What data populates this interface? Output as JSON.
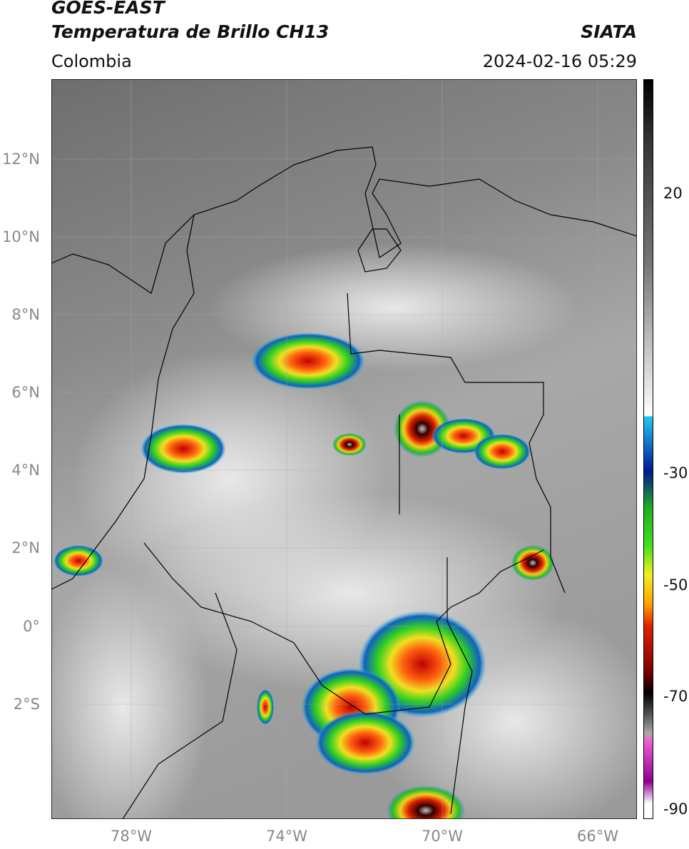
{
  "header": {
    "title": "GOES-EAST",
    "subtitle": "Temperatura de Brillo CH13",
    "region": "Colombia",
    "agency": "SIATA",
    "timestamp": "2024-02-16 05:29"
  },
  "map": {
    "lat_labels": [
      "12°N",
      "10°N",
      "8°N",
      "6°N",
      "4°N",
      "2°N",
      "0°",
      "2°S"
    ],
    "lon_labels": [
      "78°W",
      "74°W",
      "70°W",
      "66°W"
    ]
  },
  "colorbar": {
    "ticks": [
      20,
      -30,
      -50,
      -70,
      -90
    ]
  }
}
